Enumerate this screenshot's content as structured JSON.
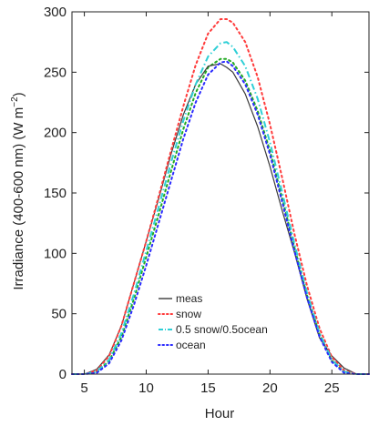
{
  "chart_data": {
    "type": "line",
    "xlabel": "Hour",
    "ylabel_main": "Irradiance (400-600 nm) (W m",
    "ylabel_sup": "−2",
    "ylabel_close": ")",
    "xlim": [
      4,
      28
    ],
    "ylim": [
      0,
      300
    ],
    "xticks": [
      5,
      10,
      15,
      20,
      25
    ],
    "yticks": [
      0,
      50,
      100,
      150,
      200,
      250,
      300
    ],
    "grid": false,
    "legend_position": "lower-left",
    "series": [
      {
        "name": "meas",
        "color": "#3a3a3a",
        "style": "solid",
        "x": [
          4,
          5,
          6,
          7,
          8,
          9,
          10,
          11,
          12,
          13,
          14,
          15,
          16,
          16.5,
          17,
          18,
          19,
          20,
          21,
          22,
          23,
          24,
          25,
          26,
          27,
          28
        ],
        "y": [
          0,
          0,
          4,
          16,
          40,
          75,
          110,
          145,
          182,
          215,
          240,
          255,
          257,
          254,
          250,
          232,
          205,
          172,
          135,
          100,
          62,
          30,
          15,
          5,
          0,
          0
        ]
      },
      {
        "name": "snow",
        "color": "#ff3b3b",
        "style": "dotted",
        "x": [
          4,
          5,
          6,
          7,
          8,
          9,
          10,
          11,
          12,
          13,
          14,
          15,
          16,
          16.5,
          17,
          18,
          19,
          20,
          21,
          22,
          23,
          24,
          25,
          26,
          27,
          28
        ],
        "y": [
          0,
          0,
          3,
          15,
          40,
          75,
          110,
          147,
          185,
          222,
          256,
          282,
          294,
          294,
          291,
          275,
          246,
          207,
          162,
          115,
          73,
          38,
          14,
          3,
          0,
          0
        ]
      },
      {
        "name": "0.5 snow/0.5ocean",
        "color": "#2ecfd6",
        "style": "dashdot",
        "x": [
          4,
          5,
          6,
          7,
          8,
          9,
          10,
          11,
          12,
          13,
          14,
          15,
          16,
          16.5,
          17,
          18,
          19,
          20,
          21,
          22,
          23,
          24,
          25,
          26,
          27,
          28
        ],
        "y": [
          0,
          0,
          2,
          12,
          34,
          66,
          102,
          138,
          175,
          210,
          240,
          263,
          274,
          275,
          271,
          255,
          228,
          192,
          150,
          107,
          67,
          34,
          12,
          2,
          0,
          0
        ]
      },
      {
        "name": "ocean",
        "color": "#2b2bff",
        "style": "dotted",
        "x": [
          4,
          5,
          6,
          7,
          8,
          9,
          10,
          11,
          12,
          13,
          14,
          15,
          16,
          16.5,
          17,
          18,
          19,
          20,
          21,
          22,
          23,
          24,
          25,
          26,
          27,
          28
        ],
        "y": [
          0,
          0,
          1,
          9,
          28,
          57,
          90,
          125,
          160,
          195,
          225,
          248,
          258,
          259,
          255,
          240,
          215,
          182,
          142,
          101,
          63,
          31,
          10,
          1,
          0,
          0
        ]
      }
    ],
    "overlay_series": [
      {
        "name": "green-dotted",
        "color": "#22aa22",
        "style": "dotted",
        "x": [
          4,
          5,
          6,
          7,
          8,
          9,
          10,
          11,
          12,
          13,
          14,
          15,
          16,
          16.5,
          17,
          18,
          19,
          20,
          21,
          22,
          23,
          24,
          25,
          26,
          27,
          28
        ],
        "y": [
          0,
          0,
          2,
          11,
          31,
          62,
          97,
          132,
          168,
          203,
          233,
          254,
          261,
          261,
          258,
          243,
          218,
          185,
          145,
          104,
          65,
          33,
          11,
          2,
          0,
          0
        ]
      }
    ]
  }
}
